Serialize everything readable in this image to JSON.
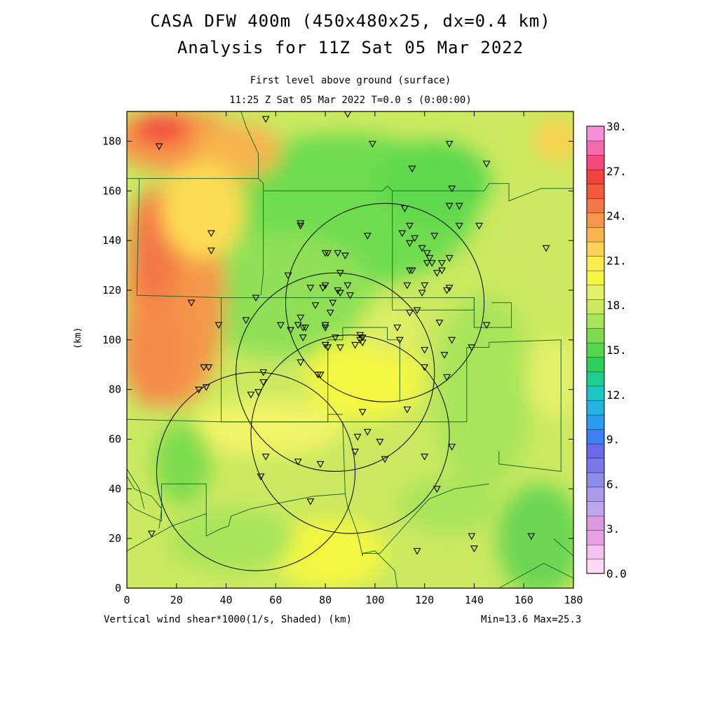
{
  "title": {
    "line1": "CASA DFW 400m (450x480x25, dx=0.4 km)",
    "line2": "Analysis for 11Z Sat 05 Mar 2022"
  },
  "subtitle": {
    "level": "First level above ground (surface)",
    "time": "11:25 Z Sat 05 Mar 2022   T=0.0 s (0:00:00)"
  },
  "footer": {
    "field": "Vertical wind shear*1000(1/s, Shaded)  (km)",
    "range": "Min=13.6 Max=25.3"
  },
  "axis": {
    "y_label": "(km)",
    "x_ticks": [
      "0",
      "20",
      "40",
      "60",
      "80",
      "100",
      "120",
      "140",
      "160",
      "180"
    ],
    "y_ticks": [
      "0",
      "20",
      "40",
      "60",
      "80",
      "100",
      "120",
      "140",
      "160",
      "180"
    ]
  },
  "colorbar": {
    "labels": [
      "0.0",
      "3.",
      "6.",
      "9.",
      "12.",
      "15.",
      "18.",
      "21.",
      "24.",
      "27.",
      "30."
    ],
    "colors": [
      "#fdd8f5",
      "#f3c2ee",
      "#e7a0e2",
      "#d99ae0",
      "#bea6ee",
      "#a89ce8",
      "#8f8ce8",
      "#7a78e6",
      "#6a6ae8",
      "#3b7ff0",
      "#2b9cf0",
      "#23b4e0",
      "#1cc8c4",
      "#1ccf8c",
      "#2fd05a",
      "#55d650",
      "#7edc4e",
      "#a8e45a",
      "#cbea60",
      "#e3f06a",
      "#f4f642",
      "#fbec4e",
      "#fad455",
      "#f8b44e",
      "#f5964a",
      "#f27846",
      "#f25a3e",
      "#f2443e",
      "#f2487a",
      "#f56aac",
      "#f890d6"
    ]
  },
  "map_data": {
    "extent_km": {
      "x": [
        0,
        180
      ],
      "y": [
        0,
        192
      ]
    },
    "value_range": {
      "min": 13.6,
      "max": 25.3
    },
    "radar_circles": [
      {
        "cx": 104,
        "cy": 115,
        "r": 40
      },
      {
        "cx": 84,
        "cy": 87,
        "r": 40
      },
      {
        "cx": 90,
        "cy": 62,
        "r": 40
      },
      {
        "cx": 52,
        "cy": 47,
        "r": 40
      }
    ],
    "stations": [
      [
        56,
        189
      ],
      [
        89,
        191
      ],
      [
        13,
        178
      ],
      [
        99,
        179
      ],
      [
        130,
        179
      ],
      [
        115,
        169
      ],
      [
        145,
        171
      ],
      [
        131,
        161
      ],
      [
        130,
        154
      ],
      [
        134,
        154
      ],
      [
        112,
        153
      ],
      [
        70,
        146
      ],
      [
        70,
        147
      ],
      [
        114,
        146
      ],
      [
        134,
        146
      ],
      [
        142,
        146
      ],
      [
        34,
        143
      ],
      [
        97,
        142
      ],
      [
        111,
        143
      ],
      [
        116,
        141
      ],
      [
        124,
        142
      ],
      [
        114,
        139
      ],
      [
        119,
        137
      ],
      [
        121,
        135
      ],
      [
        122,
        133
      ],
      [
        123,
        131
      ],
      [
        34,
        136
      ],
      [
        80,
        135
      ],
      [
        81,
        135
      ],
      [
        85,
        135
      ],
      [
        88,
        134
      ],
      [
        121,
        131
      ],
      [
        127,
        131
      ],
      [
        130,
        133
      ],
      [
        65,
        126
      ],
      [
        86,
        127
      ],
      [
        114,
        128
      ],
      [
        115,
        128
      ],
      [
        125,
        127
      ],
      [
        127,
        128
      ],
      [
        74,
        121
      ],
      [
        79,
        121
      ],
      [
        80,
        122
      ],
      [
        85,
        120
      ],
      [
        89,
        122
      ],
      [
        113,
        122
      ],
      [
        120,
        122
      ],
      [
        130,
        121
      ],
      [
        129,
        120
      ],
      [
        86,
        119
      ],
      [
        90,
        118
      ],
      [
        119,
        119
      ],
      [
        83,
        115
      ],
      [
        52,
        117
      ],
      [
        26,
        115
      ],
      [
        76,
        114
      ],
      [
        114,
        111
      ],
      [
        117,
        112
      ],
      [
        82,
        111
      ],
      [
        70,
        109
      ],
      [
        126,
        107
      ],
      [
        48,
        108
      ],
      [
        37,
        106
      ],
      [
        62,
        106
      ],
      [
        69,
        106
      ],
      [
        72,
        105
      ],
      [
        71,
        105
      ],
      [
        80,
        106
      ],
      [
        80,
        105
      ],
      [
        109,
        105
      ],
      [
        145,
        106
      ],
      [
        66,
        104
      ],
      [
        94,
        102
      ],
      [
        94,
        100
      ],
      [
        95,
        101
      ],
      [
        84,
        101
      ],
      [
        95,
        99
      ],
      [
        71,
        101
      ],
      [
        110,
        100
      ],
      [
        131,
        100
      ],
      [
        92,
        98
      ],
      [
        81,
        97
      ],
      [
        80,
        98
      ],
      [
        86,
        97
      ],
      [
        120,
        96
      ],
      [
        139,
        97
      ],
      [
        128,
        94
      ],
      [
        31,
        89
      ],
      [
        33,
        89
      ],
      [
        70,
        91
      ],
      [
        120,
        89
      ],
      [
        55,
        87
      ],
      [
        77,
        86
      ],
      [
        78,
        86
      ],
      [
        55,
        83
      ],
      [
        129,
        85
      ],
      [
        32,
        81
      ],
      [
        29,
        80
      ],
      [
        53,
        79
      ],
      [
        50,
        78
      ],
      [
        95,
        71
      ],
      [
        113,
        72
      ],
      [
        97,
        63
      ],
      [
        93,
        61
      ],
      [
        102,
        59
      ],
      [
        131,
        57
      ],
      [
        92,
        55
      ],
      [
        56,
        53
      ],
      [
        69,
        51
      ],
      [
        78,
        50
      ],
      [
        120,
        53
      ],
      [
        104,
        52
      ],
      [
        54,
        45
      ],
      [
        125,
        40
      ],
      [
        74,
        35
      ],
      [
        10,
        22
      ],
      [
        139,
        21
      ],
      [
        163,
        21
      ],
      [
        140,
        16
      ],
      [
        117,
        15
      ],
      [
        169,
        137
      ]
    ],
    "boundaries": [
      [
        [
          0,
          165
        ],
        [
          53,
          165
        ],
        [
          53,
          175
        ],
        [
          48,
          186
        ],
        [
          46,
          192
        ]
      ],
      [
        [
          5,
          165
        ],
        [
          4,
          118
        ],
        [
          38,
          117
        ],
        [
          38,
          67
        ],
        [
          81,
          67
        ],
        [
          81,
          100
        ],
        [
          87,
          100
        ],
        [
          87,
          105
        ],
        [
          105,
          105
        ],
        [
          105,
          100
        ],
        [
          110,
          100
        ],
        [
          110,
          75
        ]
      ],
      [
        [
          38,
          117
        ],
        [
          140,
          117
        ],
        [
          140,
          105
        ],
        [
          155,
          105
        ],
        [
          155,
          115
        ],
        [
          147,
          115
        ]
      ],
      [
        [
          53,
          165
        ],
        [
          55,
          163
        ],
        [
          55,
          160
        ],
        [
          103,
          160
        ],
        [
          105,
          162
        ],
        [
          107,
          160
        ],
        [
          107,
          148
        ],
        [
          107,
          112
        ],
        [
          140,
          112
        ],
        [
          140,
          117
        ]
      ],
      [
        [
          107,
          160
        ],
        [
          144,
          160
        ],
        [
          146,
          163
        ],
        [
          154,
          163
        ],
        [
          154,
          156
        ],
        [
          167,
          161
        ],
        [
          180,
          161
        ]
      ],
      [
        [
          55,
          160
        ],
        [
          55,
          127
        ],
        [
          54,
          118
        ]
      ],
      [
        [
          38,
          67
        ],
        [
          0,
          68
        ]
      ],
      [
        [
          38,
          67
        ],
        [
          51,
          67
        ],
        [
          81,
          67
        ],
        [
          129,
          67
        ],
        [
          137,
          67
        ],
        [
          137,
          97
        ],
        [
          146,
          97
        ],
        [
          146,
          99
        ],
        [
          175,
          100
        ],
        [
          175,
          47
        ],
        [
          150,
          50
        ],
        [
          150,
          55
        ]
      ],
      [
        [
          81,
          67
        ],
        [
          81,
          70
        ],
        [
          87,
          70
        ]
      ],
      [
        [
          87,
          67
        ],
        [
          88,
          38
        ],
        [
          75,
          37
        ],
        [
          60,
          34
        ],
        [
          50,
          32
        ],
        [
          42,
          29
        ],
        [
          41,
          25
        ],
        [
          38,
          24
        ],
        [
          32,
          21
        ],
        [
          32,
          30
        ],
        [
          18,
          25
        ],
        [
          0,
          15
        ]
      ],
      [
        [
          0,
          35
        ],
        [
          3,
          32
        ],
        [
          14,
          27
        ],
        [
          14,
          42
        ],
        [
          32,
          42
        ],
        [
          32,
          29
        ]
      ],
      [
        [
          0,
          45
        ],
        [
          3,
          40
        ],
        [
          10,
          37
        ],
        [
          14,
          32
        ],
        [
          13,
          24
        ]
      ],
      [
        [
          88,
          38
        ],
        [
          89,
          33
        ],
        [
          93,
          22
        ],
        [
          95,
          13
        ],
        [
          95,
          14
        ],
        [
          102,
          14
        ],
        [
          120,
          34
        ],
        [
          122,
          36
        ],
        [
          132,
          40
        ],
        [
          146,
          42
        ]
      ],
      [
        [
          95,
          14
        ],
        [
          100,
          15
        ],
        [
          108,
          7
        ],
        [
          109,
          0
        ]
      ],
      [
        [
          0,
          48
        ],
        [
          5,
          40
        ],
        [
          7,
          32
        ]
      ],
      [
        [
          150,
          0
        ],
        [
          168,
          10
        ],
        [
          180,
          4
        ]
      ],
      [
        [
          172,
          20
        ],
        [
          180,
          13
        ]
      ]
    ]
  }
}
